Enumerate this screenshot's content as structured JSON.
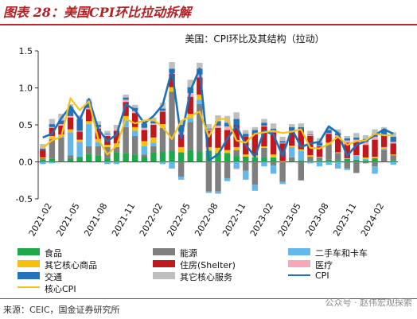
{
  "figure_title": "图表 28：美国CPI环比拉动拆解",
  "source_text": "来源：CEIC，国金证券研究所",
  "watermark_text": "公众号 · 赵伟宏观探索",
  "chart_data": {
    "type": "bar",
    "stacked": true,
    "title": "美国：CPI环比及其结构（拉动）",
    "ylim": [
      -0.5,
      1.5
    ],
    "yticks": [
      "-0.5",
      "0.0",
      "0.5",
      "1.0",
      "1.5"
    ],
    "ytick_values": [
      -0.5,
      0,
      0.5,
      1.0,
      1.5
    ],
    "xtick_labels": [
      "2021-02",
      "2021-05",
      "2021-08",
      "2021-11",
      "2022-02",
      "2022-05",
      "2022-08",
      "2022-11",
      "2023-02",
      "2023-05",
      "2023-08",
      "2023-11",
      "2024-02"
    ],
    "xtick_indices": [
      1,
      4,
      7,
      10,
      13,
      16,
      19,
      22,
      25,
      28,
      31,
      34,
      37
    ],
    "categories": [
      "2021-01",
      "2021-02",
      "2021-03",
      "2021-04",
      "2021-05",
      "2021-06",
      "2021-07",
      "2021-08",
      "2021-09",
      "2021-10",
      "2021-11",
      "2021-12",
      "2022-01",
      "2022-02",
      "2022-03",
      "2022-04",
      "2022-05",
      "2022-06",
      "2022-07",
      "2022-08",
      "2022-09",
      "2022-10",
      "2022-11",
      "2022-12",
      "2023-01",
      "2023-02",
      "2023-03",
      "2023-04",
      "2023-05",
      "2023-06",
      "2023-07",
      "2023-08",
      "2023-09",
      "2023-10",
      "2023-11",
      "2023-12",
      "2024-01",
      "2024-02",
      "2024-03"
    ],
    "series": [
      {
        "name": "食品",
        "color": "#1fa84a",
        "values": [
          0.03,
          0.04,
          0.01,
          0.05,
          0.06,
          0.11,
          0.09,
          0.05,
          0.13,
          0.12,
          0.1,
          0.07,
          0.13,
          0.14,
          0.15,
          0.13,
          0.16,
          0.14,
          0.15,
          0.12,
          0.12,
          0.08,
          0.07,
          0.06,
          0.06,
          0.06,
          0.0,
          0.01,
          0.02,
          0.01,
          0.02,
          0.03,
          0.02,
          0.04,
          0.03,
          0.02,
          0.05,
          0.0,
          0.02
        ]
      },
      {
        "name": "能源",
        "color": "#7f7f7f",
        "values": [
          0.02,
          0.27,
          0.32,
          0.04,
          0.01,
          0.1,
          0.12,
          0.15,
          0.07,
          0.35,
          0.25,
          0.03,
          0.08,
          0.32,
          0.8,
          -0.2,
          0.38,
          0.64,
          -0.4,
          -0.4,
          -0.22,
          0.08,
          -0.12,
          -0.31,
          0.13,
          -0.05,
          -0.27,
          0.05,
          -0.25,
          0.06,
          0.04,
          0.21,
          0.1,
          -0.09,
          -0.15,
          -0.02,
          -0.06,
          0.16,
          0.07
        ]
      },
      {
        "name": "二手车和卡车",
        "color": "#63b8ea",
        "values": [
          -0.03,
          -0.02,
          0.02,
          0.31,
          0.2,
          0.3,
          0.06,
          -0.03,
          -0.03,
          0.1,
          0.07,
          0.11,
          0.05,
          -0.03,
          -0.09,
          -0.04,
          0.05,
          0.06,
          -0.02,
          -0.03,
          -0.04,
          -0.09,
          -0.12,
          -0.08,
          -0.06,
          -0.11,
          -0.03,
          0.14,
          0.13,
          -0.02,
          -0.06,
          -0.04,
          -0.09,
          -0.02,
          0.05,
          0.02,
          -0.1,
          0.02,
          -0.04
        ]
      },
      {
        "name": "其它核心商品",
        "color": "#f9bf0f",
        "values": [
          0.01,
          0.04,
          0.02,
          0.04,
          0.03,
          0.04,
          0.04,
          0.03,
          0.05,
          0.05,
          0.05,
          0.07,
          0.07,
          0.05,
          0.06,
          0.07,
          0.06,
          0.07,
          0.05,
          0.07,
          0.04,
          0.04,
          0.03,
          0.03,
          0.02,
          0.04,
          0.01,
          0.02,
          0.02,
          0.02,
          0.01,
          0.02,
          0.01,
          0.01,
          0.01,
          0.02,
          0.02,
          0.02,
          0.01
        ]
      },
      {
        "name": "住房(Shelter)",
        "color": "#c0181d",
        "values": [
          0.1,
          0.11,
          0.12,
          0.16,
          0.11,
          0.16,
          0.14,
          0.12,
          0.17,
          0.19,
          0.19,
          0.15,
          0.17,
          0.17,
          0.18,
          0.17,
          0.23,
          0.23,
          0.22,
          0.27,
          0.27,
          0.3,
          0.24,
          0.3,
          0.27,
          0.3,
          0.24,
          0.19,
          0.26,
          0.26,
          0.14,
          0.12,
          0.21,
          0.21,
          0.18,
          0.17,
          0.23,
          0.16,
          0.15
        ]
      },
      {
        "name": "医疗",
        "color": "#f4a9b8",
        "values": [
          0.0,
          0.01,
          0.02,
          0.02,
          0.01,
          0.02,
          0.02,
          0.02,
          0.03,
          0.03,
          0.03,
          0.03,
          0.02,
          0.01,
          0.01,
          0.04,
          0.05,
          0.04,
          0.02,
          0.03,
          0.05,
          -0.01,
          0.0,
          0.0,
          0.01,
          0.01,
          0.01,
          0.01,
          0.0,
          0.01,
          0.01,
          0.01,
          0.02,
          0.03,
          0.03,
          0.04,
          0.04,
          0.01,
          0.02
        ]
      },
      {
        "name": "交通",
        "color": "#2373ba",
        "values": [
          0.02,
          0.04,
          0.05,
          0.12,
          0.16,
          0.08,
          0.03,
          0.01,
          0.0,
          0.03,
          0.04,
          0.06,
          0.03,
          0.03,
          0.06,
          0.09,
          0.08,
          0.08,
          0.01,
          0.06,
          0.05,
          0.08,
          0.04,
          0.04,
          0.04,
          0.04,
          0.02,
          0.05,
          0.04,
          0.01,
          0.04,
          0.04,
          0.03,
          0.03,
          0.03,
          0.04,
          0.04,
          0.06,
          0.07
        ]
      },
      {
        "name": "其它核心服务",
        "color": "#bfbfbf",
        "values": [
          0.06,
          0.07,
          0.09,
          0.04,
          0.05,
          0.04,
          0.05,
          0.04,
          0.05,
          0.04,
          0.04,
          0.04,
          0.05,
          0.08,
          0.09,
          0.06,
          0.1,
          0.08,
          0.06,
          0.08,
          0.09,
          0.09,
          0.05,
          0.04,
          0.05,
          0.07,
          0.06,
          0.04,
          0.05,
          0.05,
          0.06,
          0.03,
          0.05,
          0.03,
          0.06,
          0.05,
          0.06,
          0.04,
          0.06
        ]
      }
    ],
    "lines": [
      {
        "name": "CPI",
        "color": "#1c70b8",
        "values": [
          0.33,
          0.38,
          0.59,
          0.75,
          0.57,
          0.85,
          0.45,
          0.28,
          0.37,
          0.78,
          0.7,
          0.52,
          0.62,
          0.77,
          1.24,
          0.32,
          0.96,
          1.26,
          0.02,
          0.1,
          0.31,
          0.49,
          0.23,
          0.07,
          0.42,
          0.37,
          0.08,
          0.45,
          0.2,
          0.25,
          0.27,
          0.48,
          0.39,
          0.08,
          0.23,
          0.28,
          0.36,
          0.44,
          0.38
        ]
      },
      {
        "name": "核心CPI",
        "color": "#f7c31a",
        "values": [
          0.19,
          0.29,
          0.34,
          0.86,
          0.7,
          0.82,
          0.31,
          0.1,
          0.22,
          0.58,
          0.52,
          0.56,
          0.57,
          0.47,
          0.31,
          0.55,
          0.62,
          0.68,
          0.34,
          0.58,
          0.58,
          0.29,
          0.26,
          0.38,
          0.4,
          0.42,
          0.39,
          0.41,
          0.44,
          0.19,
          0.18,
          0.24,
          0.34,
          0.23,
          0.28,
          0.29,
          0.38,
          0.36,
          0.36
        ]
      }
    ],
    "legend": {
      "position": "bottom",
      "items": [
        {
          "label": "食品",
          "kind": "bar",
          "color": "#1fa84a"
        },
        {
          "label": "能源",
          "kind": "bar",
          "color": "#7f7f7f"
        },
        {
          "label": "二手车和卡车",
          "kind": "bar",
          "color": "#63b8ea"
        },
        {
          "label": "其它核心商品",
          "kind": "bar",
          "color": "#f9bf0f"
        },
        {
          "label": "住房(Shelter)",
          "kind": "bar",
          "color": "#c0181d"
        },
        {
          "label": "医疗",
          "kind": "bar",
          "color": "#f4a9b8"
        },
        {
          "label": "交通",
          "kind": "bar",
          "color": "#2373ba"
        },
        {
          "label": "其它核心服务",
          "kind": "bar",
          "color": "#bfbfbf"
        },
        {
          "label": "CPI",
          "kind": "line",
          "color": "#1c70b8"
        },
        {
          "label": "核心CPI",
          "kind": "line",
          "color": "#f7c31a"
        }
      ]
    }
  }
}
